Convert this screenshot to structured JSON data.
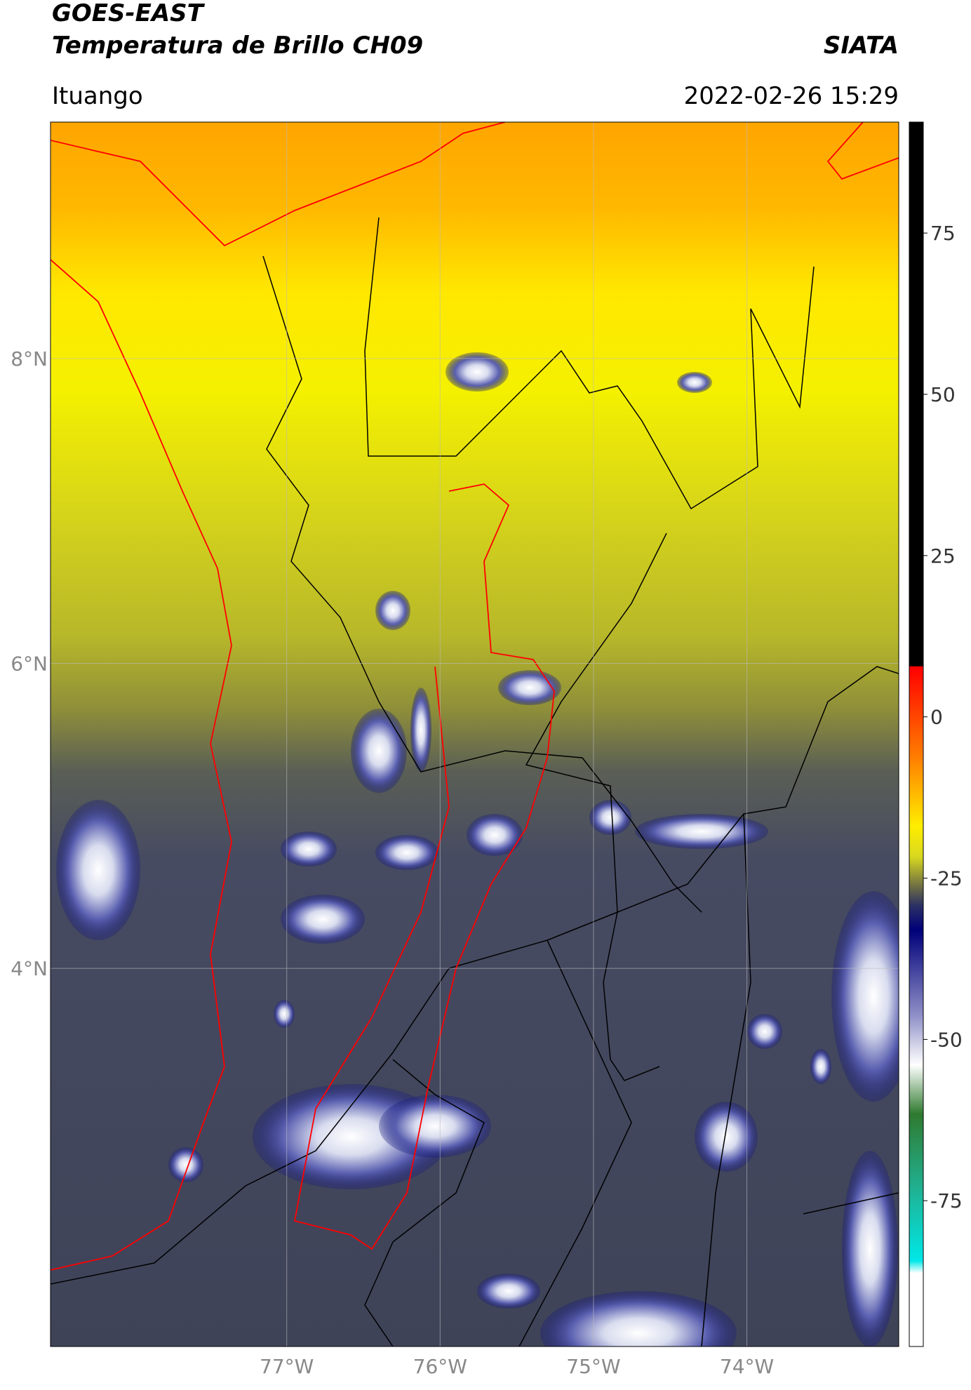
{
  "header": {
    "title": "GOES-EAST",
    "subtitle": "Temperatura de Brillo CH09",
    "source": "SIATA",
    "location": "Ituango",
    "datetime": "2022-02-26 15:29"
  },
  "map": {
    "xlim": [
      -78.54,
      -73.01
    ],
    "ylim": [
      1.52,
      9.55
    ],
    "grid": true,
    "xticks": [
      {
        "value": -77,
        "label": "77°W"
      },
      {
        "value": -76,
        "label": "76°W"
      },
      {
        "value": -75,
        "label": "75°W"
      },
      {
        "value": -74,
        "label": "74°W"
      }
    ],
    "yticks": [
      {
        "value": 8,
        "label": "8°N"
      },
      {
        "value": 6,
        "label": "6°N"
      },
      {
        "value": 4,
        "label": "4°N"
      }
    ]
  },
  "colorbar": {
    "clim": [
      -97.6,
      92.2
    ],
    "ticks": [
      75,
      50,
      25,
      0,
      -25,
      -50,
      -75
    ]
  }
}
